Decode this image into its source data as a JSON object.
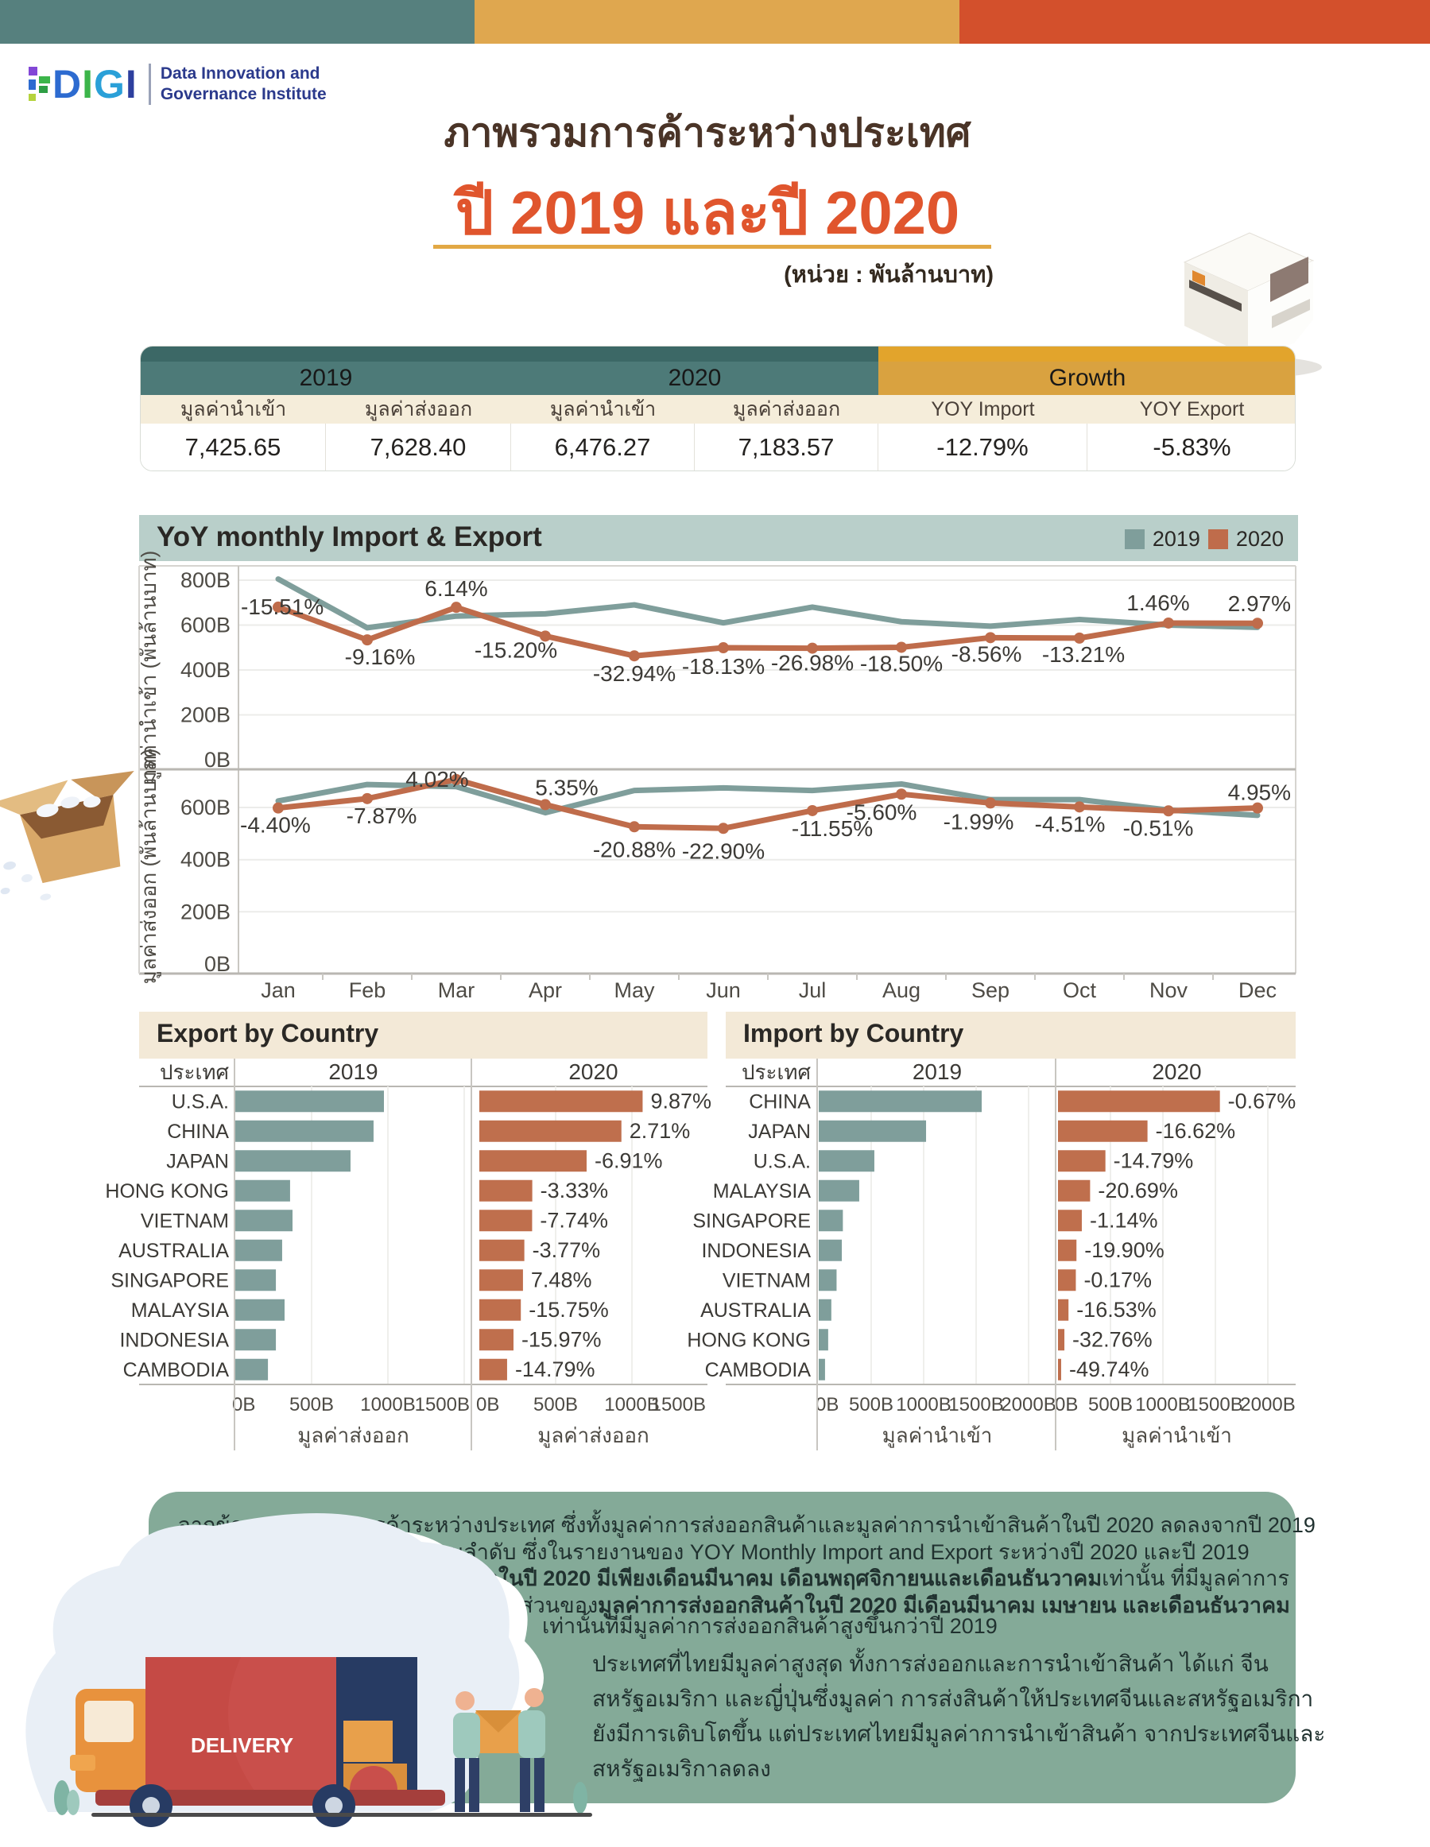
{
  "brand": {
    "logo": "DIGI",
    "tagline1": "Data Innovation and",
    "tagline2": "Governance Institute"
  },
  "header": {
    "title": "ภาพรวมการค้าระหว่างประเทศ",
    "subtitle": "ปี 2019 และปี 2020",
    "unit": "(หน่วย : พันล้านบาท)"
  },
  "colors": {
    "teal": "#7f9e9b",
    "orange": "#bf6c4b",
    "band": "#b9cfca",
    "tableTeal": "#4d7a78",
    "tableGold": "#d9a240",
    "topTeal": "#56807e",
    "topGold": "#dfa74f",
    "topOrange": "#d3502c"
  },
  "summary": {
    "groups": [
      "2019",
      "2020",
      "Growth"
    ],
    "cols": [
      "มูลค่านำเข้า",
      "มูลค่าส่งออก",
      "มูลค่านำเข้า",
      "มูลค่าส่งออก",
      "YOY Import",
      "YOY Export"
    ],
    "values": [
      "7,425.65",
      "7,628.40",
      "6,476.27",
      "7,183.57",
      "-12.79%",
      "-5.83%"
    ]
  },
  "legend": {
    "y2019": "2019",
    "y2020": "2020"
  },
  "chart_data": [
    {
      "id": "import_monthly",
      "type": "line",
      "title": "YoY monthly Import & Export",
      "ylabel": "มูลค่านำเข้า (พันล้านบาท)",
      "x": [
        "Jan",
        "Feb",
        "Mar",
        "Apr",
        "May",
        "Jun",
        "Jul",
        "Aug",
        "Sep",
        "Oct",
        "Nov",
        "Dec"
      ],
      "yticks": [
        "800B",
        "600B",
        "400B",
        "200B",
        "0B"
      ],
      "ylim": [
        0,
        860
      ],
      "legend_position": "top-right",
      "grid": true,
      "series": [
        {
          "name": "2019",
          "values": [
            805,
            588,
            640,
            650,
            690,
            610,
            680,
            615,
            595,
            625,
            600,
            590
          ]
        },
        {
          "name": "2020",
          "values": [
            680,
            534,
            679,
            551,
            463,
            499,
            497,
            501,
            544,
            542,
            609,
            608
          ],
          "labels": [
            "-15.51%",
            "-9.16%",
            "6.14%",
            "-15.20%",
            "-32.94%",
            "-18.13%",
            "-26.98%",
            "-18.50%",
            "-8.56%",
            "-13.21%",
            "1.46%",
            "2.97%"
          ]
        }
      ]
    },
    {
      "id": "export_monthly",
      "type": "line",
      "ylabel": "มูลค่าส่งออก (พันล้านบาท)",
      "x": [
        "Jan",
        "Feb",
        "Mar",
        "Apr",
        "May",
        "Jun",
        "Jul",
        "Aug",
        "Sep",
        "Oct",
        "Nov",
        "Dec"
      ],
      "yticks": [
        "600B",
        "400B",
        "200B",
        "0B"
      ],
      "ylim": [
        0,
        740
      ],
      "grid": true,
      "series": [
        {
          "name": "2019",
          "values": [
            625,
            688,
            680,
            580,
            665,
            675,
            665,
            690,
            630,
            630,
            590,
            570
          ]
        },
        {
          "name": "2020",
          "values": [
            598,
            634,
            707,
            611,
            526,
            520,
            588,
            651,
            617,
            602,
            587,
            598
          ],
          "labels": [
            "-4.40%",
            "-7.87%",
            "4.02%",
            "5.35%",
            "-20.88%",
            "-22.90%",
            "-11.55%",
            "-5.60%",
            "-1.99%",
            "-4.51%",
            "-0.51%",
            "4.95%"
          ]
        }
      ]
    },
    {
      "id": "export_by_country",
      "type": "bar",
      "title": "Export by Country",
      "col_header": "ประเทศ",
      "group_headers": [
        "2019",
        "2020"
      ],
      "xlabel": "มูลค่าส่งออก",
      "xticks": [
        "0B",
        "500B",
        "1000B",
        "1500B"
      ],
      "xlim": [
        0,
        1500
      ],
      "categories": [
        "U.S.A.",
        "CHINA",
        "JAPAN",
        "HONG KONG",
        "VIETNAM",
        "AUSTRALIA",
        "SINGAPORE",
        "MALAYSIA",
        "INDONESIA",
        "CAMBODIA"
      ],
      "series": [
        {
          "name": "2019",
          "values": [
            974,
            906,
            755,
            359,
            375,
            307,
            266,
            323,
            266,
            214
          ]
        },
        {
          "name": "2020",
          "values": [
            1070,
            931,
            703,
            347,
            346,
            295,
            286,
            272,
            224,
            182
          ],
          "labels": [
            "9.87%",
            "2.71%",
            "-6.91%",
            "-3.33%",
            "-7.74%",
            "-3.77%",
            "7.48%",
            "-15.75%",
            "-15.97%",
            "-14.79%"
          ]
        }
      ]
    },
    {
      "id": "import_by_country",
      "type": "bar",
      "title": "Import by Country",
      "col_header": "ประเทศ",
      "group_headers": [
        "2019",
        "2020"
      ],
      "xlabel": "มูลค่านำเข้า",
      "xticks": [
        "0B",
        "500B",
        "1000B",
        "1500B",
        "2000B"
      ],
      "xlim": [
        0,
        2000
      ],
      "categories": [
        "CHINA",
        "JAPAN",
        "U.S.A.",
        "MALAYSIA",
        "SINGAPORE",
        "INDONESIA",
        "VIETNAM",
        "AUSTRALIA",
        "HONG KONG",
        "CAMBODIA"
      ],
      "series": [
        {
          "name": "2019",
          "values": [
            1553,
            1023,
            530,
            386,
            230,
            220,
            170,
            120,
            90,
            60
          ]
        },
        {
          "name": "2020",
          "values": [
            1543,
            853,
            452,
            306,
            227,
            176,
            170,
            100,
            61,
            30
          ],
          "labels": [
            "-0.67%",
            "-16.62%",
            "-14.79%",
            "-20.69%",
            "-1.14%",
            "-19.90%",
            "-0.17%",
            "-16.53%",
            "-32.76%",
            "-49.74%"
          ]
        }
      ]
    }
  ],
  "footer": {
    "truck_label": "DELIVERY",
    "p1_lines": [
      "จากข้อมูลภาพรวมการค้าระหว่างประเทศ ซึ่งทั้งมูลค่าการส่งออกสินค้าและมูลค่าการนำเข้าสินค้าในปี 2020 ลดลงจากปี 2019",
      "อยู่ –5.83% และ –12.79% ตามลำดับ ซึ่งในรายงานของ YOY Monthly Import and Export ระหว่างปี 2020 และปี 2019",
      "จะเห็นได้ว่า **มูลค่าการนำเข้าสินค้าในปี 2020 มีเพียงเดือนมีนาคม เดือนพฤศจิกายนและเดือนธันวาคม**เท่านั้น ที่มีมูลค่าการ",
      "นำเข้าสินค้าสูงขึ้นกว่าปี 2019 และในส่วนของ**มูลค่าการส่งออกสินค้าในปี 2020 มีเดือนมีนาคม เมษายน และเดือนธันวาคม**"
    ],
    "p1_indent": "เท่านั้นที่มีมูลค่าการส่งออกสินค้าสูงขึ้นกว่าปี 2019",
    "p2_lines": [
      "ประเทศที่ไทยมีมูลค่าสูงสุด ทั้งการส่งออกและการนำเข้าสินค้า ได้แก่ จีน",
      "สหรัฐอเมริกา และญี่ปุ่นซึ่งมูลค่า การส่งสินค้าให้ประเทศจีนและสหรัฐอเมริกา",
      "ยังมีการเติบโตขึ้น แต่ประเทศไทยมีมูลค่าการนำเข้าสินค้า จากประเทศจีนและ",
      "สหรัฐอเมริกาลดลง"
    ]
  }
}
